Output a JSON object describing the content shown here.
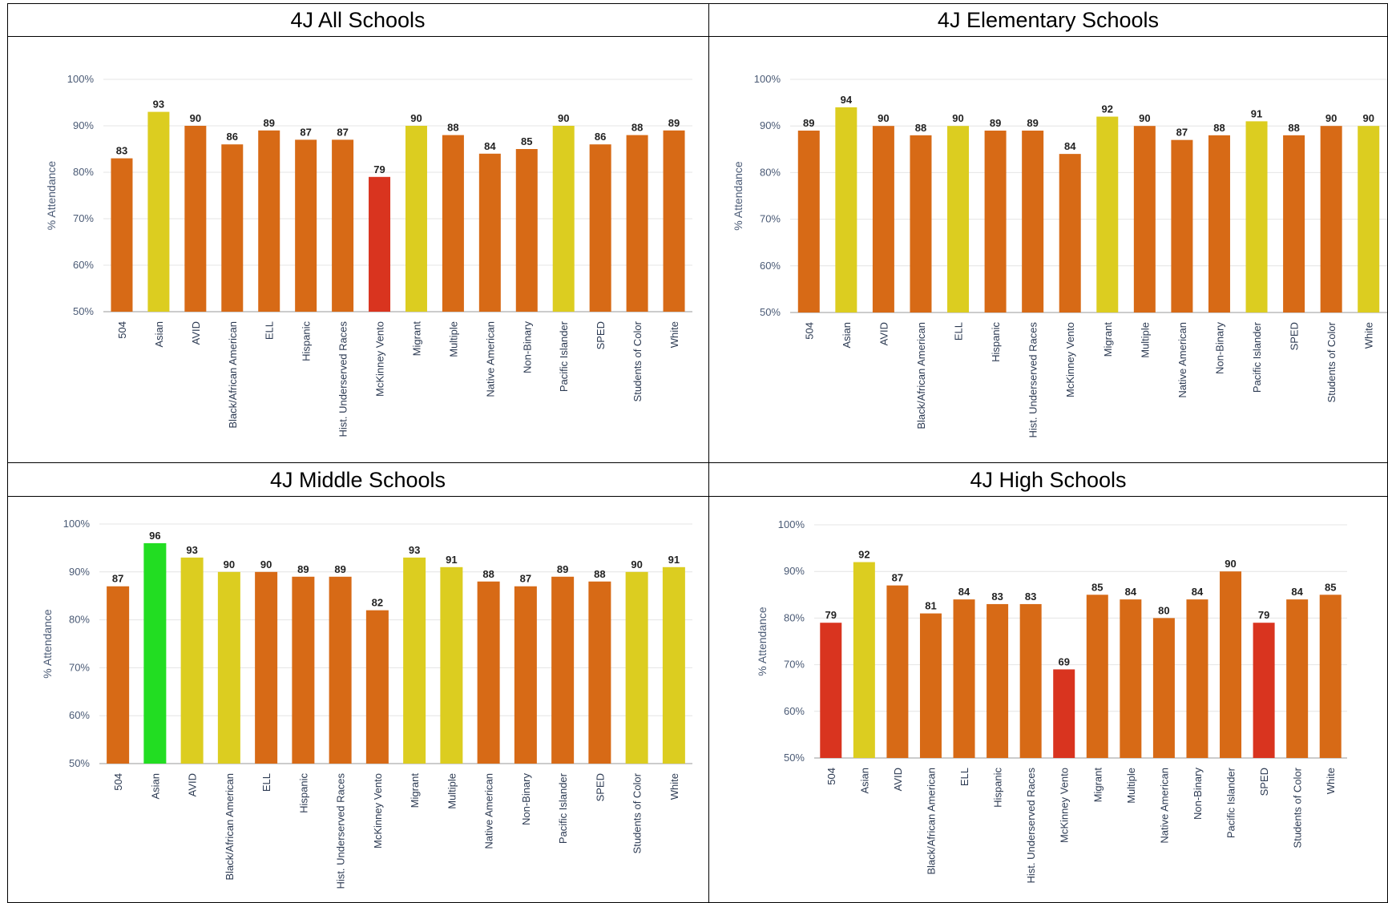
{
  "category_labels": [
    "504",
    "Asian",
    "AVID",
    "Black/African American",
    "ELL",
    "Hispanic",
    "Hist. Underserved Races",
    "McKinney Vento",
    "Migrant",
    "Multiple",
    "Native American",
    "Non-Binary",
    "Pacific Islander",
    "SPED",
    "Students of Color",
    "White"
  ],
  "colors": {
    "green": "#22dd22",
    "yellow": "#dccd20",
    "orange": "#d76a16",
    "red": "#d9341f"
  },
  "chart_data": [
    {
      "type": "bar",
      "title": "4J All Schools",
      "xlabel": "",
      "ylabel": "% Attendance",
      "ylim": [
        50,
        100
      ],
      "yticks": [
        "50%",
        "60%",
        "70%",
        "80%",
        "90%",
        "100%"
      ],
      "grid": true,
      "categories": [
        "504",
        "Asian",
        "AVID",
        "Black/African American",
        "ELL",
        "Hispanic",
        "Hist. Underserved Races",
        "McKinney Vento",
        "Migrant",
        "Multiple",
        "Native American",
        "Non-Binary",
        "Pacific Islander",
        "SPED",
        "Students of Color",
        "White"
      ],
      "values": [
        83,
        93,
        90,
        86,
        89,
        87,
        87,
        79,
        90,
        88,
        84,
        85,
        90,
        86,
        88,
        89
      ],
      "bar_colors": [
        "orange",
        "yellow",
        "orange",
        "orange",
        "orange",
        "orange",
        "orange",
        "red",
        "yellow",
        "orange",
        "orange",
        "orange",
        "yellow",
        "orange",
        "orange",
        "orange"
      ]
    },
    {
      "type": "bar",
      "title": "4J Elementary Schools",
      "xlabel": "",
      "ylabel": "% Attendance",
      "ylim": [
        50,
        100
      ],
      "yticks": [
        "50%",
        "60%",
        "70%",
        "80%",
        "90%",
        "100%"
      ],
      "grid": true,
      "categories": [
        "504",
        "Asian",
        "AVID",
        "Black/African American",
        "ELL",
        "Hispanic",
        "Hist. Underserved Races",
        "McKinney Vento",
        "Migrant",
        "Multiple",
        "Native American",
        "Non-Binary",
        "Pacific Islander",
        "SPED",
        "Students of Color",
        "White"
      ],
      "values": [
        89,
        94,
        90,
        88,
        90,
        89,
        89,
        84,
        92,
        90,
        87,
        88,
        91,
        88,
        90,
        90
      ],
      "bar_colors": [
        "orange",
        "yellow",
        "orange",
        "orange",
        "yellow",
        "orange",
        "orange",
        "orange",
        "yellow",
        "orange",
        "orange",
        "orange",
        "yellow",
        "orange",
        "orange",
        "yellow"
      ]
    },
    {
      "type": "bar",
      "title": "4J Middle Schools",
      "xlabel": "",
      "ylabel": "% Attendance",
      "ylim": [
        50,
        100
      ],
      "yticks": [
        "50%",
        "60%",
        "70%",
        "80%",
        "90%",
        "100%"
      ],
      "grid": true,
      "categories": [
        "504",
        "Asian",
        "AVID",
        "Black/African American",
        "ELL",
        "Hispanic",
        "Hist. Underserved Races",
        "McKinney Vento",
        "Migrant",
        "Multiple",
        "Native American",
        "Non-Binary",
        "Pacific Islander",
        "SPED",
        "Students of Color",
        "White"
      ],
      "values": [
        87,
        96,
        93,
        90,
        90,
        89,
        89,
        82,
        93,
        91,
        88,
        87,
        89,
        88,
        90,
        91
      ],
      "bar_colors": [
        "orange",
        "green",
        "yellow",
        "yellow",
        "orange",
        "orange",
        "orange",
        "orange",
        "yellow",
        "yellow",
        "orange",
        "orange",
        "orange",
        "orange",
        "yellow",
        "yellow"
      ]
    },
    {
      "type": "bar",
      "title": "4J High Schools",
      "xlabel": "",
      "ylabel": "% Attendance",
      "ylim": [
        50,
        100
      ],
      "yticks": [
        "50%",
        "60%",
        "70%",
        "80%",
        "90%",
        "100%"
      ],
      "grid": true,
      "categories": [
        "504",
        "Asian",
        "AVID",
        "Black/African American",
        "ELL",
        "Hispanic",
        "Hist. Underserved Races",
        "McKinney Vento",
        "Migrant",
        "Multiple",
        "Native American",
        "Non-Binary",
        "Pacific Islander",
        "SPED",
        "Students of Color",
        "White"
      ],
      "values": [
        79,
        92,
        87,
        81,
        84,
        83,
        83,
        69,
        85,
        84,
        80,
        84,
        90,
        79,
        84,
        85
      ],
      "bar_colors": [
        "red",
        "yellow",
        "orange",
        "orange",
        "orange",
        "orange",
        "orange",
        "red",
        "orange",
        "orange",
        "orange",
        "orange",
        "orange",
        "red",
        "orange",
        "orange"
      ]
    }
  ]
}
